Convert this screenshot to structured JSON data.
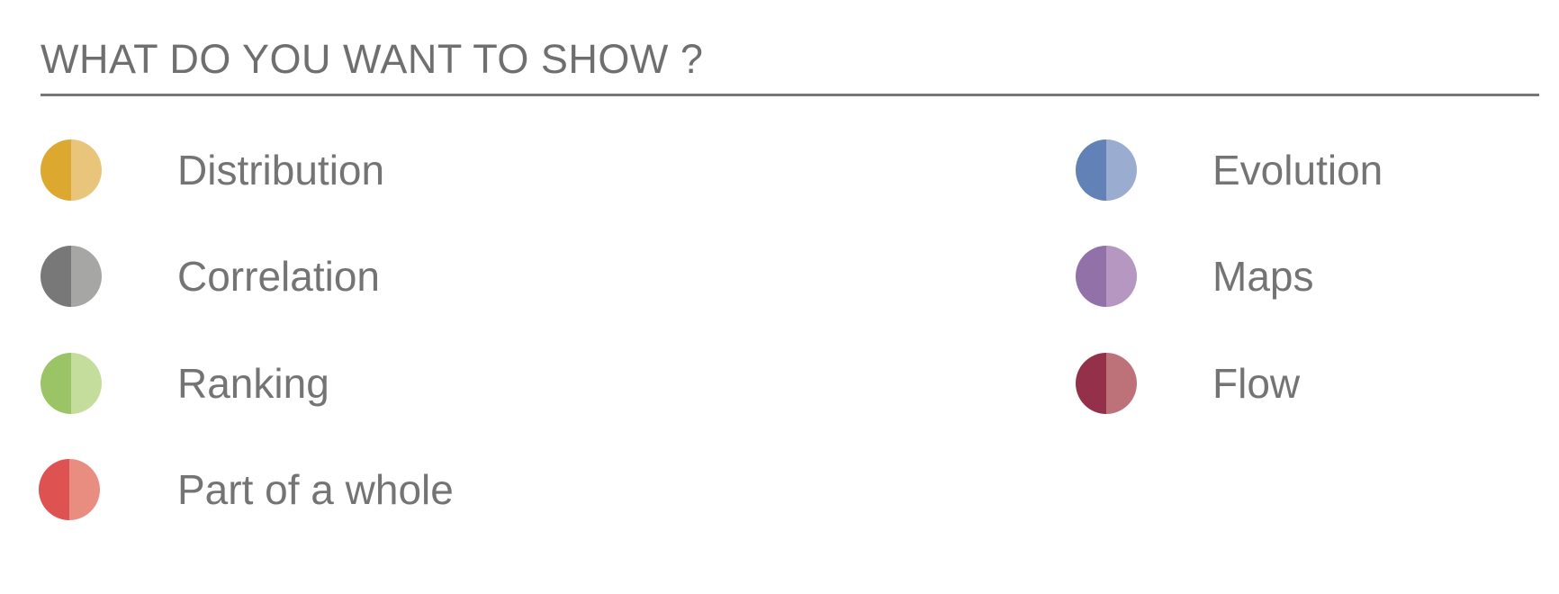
{
  "header": {
    "title": "WHAT DO YOU WANT TO SHOW ?"
  },
  "categories_left": [
    {
      "label": "Distribution",
      "icon": "half-circle-icon",
      "color_dark": "#dca82f",
      "color_light": "#e8c57a"
    },
    {
      "label": "Correlation",
      "icon": "half-circle-icon",
      "color_dark": "#787878",
      "color_light": "#a6a6a4"
    },
    {
      "label": "Ranking",
      "icon": "half-circle-icon",
      "color_dark": "#9bc466",
      "color_light": "#c5dd9c"
    },
    {
      "label": "Part of a whole",
      "icon": "half-circle-icon",
      "color_dark": "#de5252",
      "color_light": "#e98d80"
    }
  ],
  "categories_right": [
    {
      "label": "Evolution",
      "icon": "half-circle-icon",
      "color_dark": "#6281b6",
      "color_light": "#9aaccf"
    },
    {
      "label": "Maps",
      "icon": "half-circle-icon",
      "color_dark": "#9270a8",
      "color_light": "#b597c2"
    },
    {
      "label": "Flow",
      "icon": "half-circle-icon",
      "color_dark": "#94304a",
      "color_light": "#bd7179"
    }
  ]
}
